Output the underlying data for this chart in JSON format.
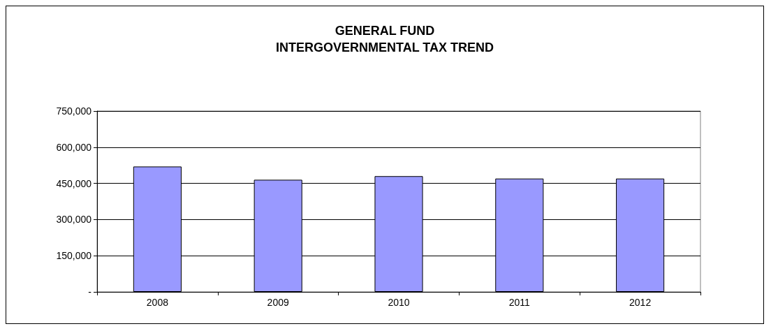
{
  "chart_data": {
    "type": "bar",
    "title": "GENERAL FUND\nINTERGOVERNMENTAL TAX TREND",
    "categories": [
      "2008",
      "2009",
      "2010",
      "2011",
      "2012"
    ],
    "values": [
      520000,
      465000,
      480000,
      470000,
      470000
    ],
    "color": "#9999ff",
    "ylim": [
      0,
      750000
    ],
    "yticks": [
      {
        "value": 0,
        "label": "-"
      },
      {
        "value": 150000,
        "label": "150,000"
      },
      {
        "value": 300000,
        "label": "300,000"
      },
      {
        "value": 450000,
        "label": "450,000"
      },
      {
        "value": 600000,
        "label": "600,000"
      },
      {
        "value": 750000,
        "label": "750,000"
      }
    ],
    "grid": "y"
  }
}
